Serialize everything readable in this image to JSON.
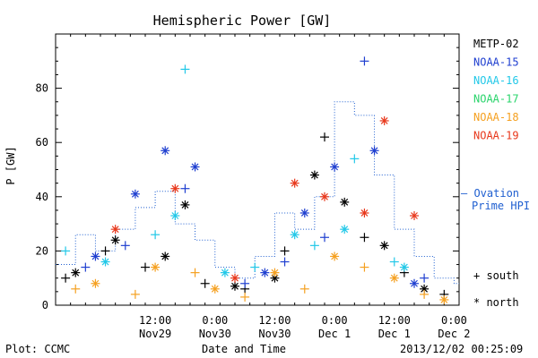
{
  "chart_data": {
    "type": "scatter",
    "title": "Hemispheric Power [GW]",
    "xlabel": "Date and Time",
    "ylabel": "P [GW]",
    "xlim": [
      "2013-11-28T16:00",
      "2013-12-02T01:00"
    ],
    "ylim": [
      0,
      100
    ],
    "y_ticks": [
      0,
      20,
      40,
      60,
      80
    ],
    "x_ticks": [
      {
        "t": "2013-11-29T12:00",
        "line1": "12:00",
        "line2": "Nov29"
      },
      {
        "t": "2013-11-30T00:00",
        "line1": "0:00",
        "line2": "Nov30"
      },
      {
        "t": "2013-11-30T12:00",
        "line1": "12:00",
        "line2": "Nov30"
      },
      {
        "t": "2013-12-01T00:00",
        "line1": "0:00",
        "line2": "Dec 1"
      },
      {
        "t": "2013-12-01T12:00",
        "line1": "12:00",
        "line2": "Dec 1"
      },
      {
        "t": "2013-12-02T00:00",
        "line1": "0:00",
        "line2": "Dec 2"
      }
    ],
    "legend": {
      "placement": "right",
      "entries": [
        {
          "name": "METP-02",
          "color": "#000000"
        },
        {
          "name": "NOAA-15",
          "color": "#1f3fd0"
        },
        {
          "name": "NOAA-16",
          "color": "#22c8e8"
        },
        {
          "name": "NOAA-17",
          "color": "#29d46b"
        },
        {
          "name": "NOAA-18",
          "color": "#f5a020"
        },
        {
          "name": "NOAA-19",
          "color": "#e8381c"
        }
      ]
    },
    "ovation": {
      "label_line1": "– Ovation",
      "label_line2": "Prime HPI",
      "color": "#1f5fd0",
      "x": [
        "2013-11-28T16:00",
        "2013-11-28T20:00",
        "2013-11-29T00:00",
        "2013-11-29T04:00",
        "2013-11-29T08:00",
        "2013-11-29T12:00",
        "2013-11-29T16:00",
        "2013-11-29T20:00",
        "2013-11-30T00:00",
        "2013-11-30T04:00",
        "2013-11-30T08:00",
        "2013-11-30T12:00",
        "2013-11-30T16:00",
        "2013-11-30T20:00",
        "2013-12-01T00:00",
        "2013-12-01T04:00",
        "2013-12-01T08:00",
        "2013-12-01T12:00",
        "2013-12-01T16:00",
        "2013-12-01T20:00",
        "2013-12-02T00:00"
      ],
      "values": [
        15,
        26,
        20,
        28,
        36,
        42,
        30,
        24,
        14,
        10,
        18,
        34,
        28,
        40,
        75,
        70,
        48,
        28,
        18,
        10,
        8
      ]
    },
    "marker_legend": [
      {
        "symbol": "+",
        "label": "south"
      },
      {
        "symbol": "*",
        "label": "north"
      }
    ],
    "series": [
      {
        "name": "METP-02",
        "color": "#000000",
        "marker": "+",
        "x": [
          "2013-11-28T18:00",
          "2013-11-29T02:00",
          "2013-11-29T10:00",
          "2013-11-29T22:00",
          "2013-11-30T06:00",
          "2013-11-30T14:00",
          "2013-11-30T22:00",
          "2013-12-01T06:00",
          "2013-12-01T14:00",
          "2013-12-01T22:00"
        ],
        "y": [
          10,
          20,
          14,
          8,
          6,
          20,
          62,
          25,
          12,
          4
        ]
      },
      {
        "name": "METP-02",
        "color": "#000000",
        "marker": "*",
        "x": [
          "2013-11-28T20:00",
          "2013-11-29T04:00",
          "2013-11-29T14:00",
          "2013-11-29T18:00",
          "2013-11-30T04:00",
          "2013-11-30T12:00",
          "2013-11-30T20:00",
          "2013-12-01T02:00",
          "2013-12-01T10:00",
          "2013-12-01T18:00"
        ],
        "y": [
          12,
          24,
          18,
          37,
          7,
          10,
          48,
          38,
          22,
          6
        ]
      },
      {
        "name": "NOAA-15",
        "color": "#1f3fd0",
        "marker": "+",
        "x": [
          "2013-11-28T22:00",
          "2013-11-29T06:00",
          "2013-11-29T18:00",
          "2013-11-30T06:00",
          "2013-11-30T14:00",
          "2013-11-30T22:00",
          "2013-12-01T06:00",
          "2013-12-01T18:00"
        ],
        "y": [
          14,
          22,
          43,
          8,
          16,
          25,
          90,
          10
        ]
      },
      {
        "name": "NOAA-15",
        "color": "#1f3fd0",
        "marker": "*",
        "x": [
          "2013-11-29T00:00",
          "2013-11-29T08:00",
          "2013-11-29T14:00",
          "2013-11-29T20:00",
          "2013-11-30T10:00",
          "2013-11-30T18:00",
          "2013-12-01T00:00",
          "2013-12-01T08:00",
          "2013-12-01T16:00"
        ],
        "y": [
          18,
          41,
          57,
          51,
          12,
          34,
          51,
          57,
          8
        ]
      },
      {
        "name": "NOAA-16",
        "color": "#22c8e8",
        "marker": "+",
        "x": [
          "2013-11-28T18:00",
          "2013-11-29T12:00",
          "2013-11-29T18:00",
          "2013-11-30T08:00",
          "2013-11-30T20:00",
          "2013-12-01T04:00",
          "2013-12-01T12:00"
        ],
        "y": [
          20,
          26,
          87,
          14,
          22,
          54,
          16
        ]
      },
      {
        "name": "NOAA-16",
        "color": "#22c8e8",
        "marker": "*",
        "x": [
          "2013-11-29T02:00",
          "2013-11-29T16:00",
          "2013-11-30T02:00",
          "2013-11-30T16:00",
          "2013-12-01T02:00",
          "2013-12-01T14:00"
        ],
        "y": [
          16,
          33,
          12,
          26,
          28,
          14
        ]
      },
      {
        "name": "NOAA-18",
        "color": "#f5a020",
        "marker": "+",
        "x": [
          "2013-11-28T20:00",
          "2013-11-29T08:00",
          "2013-11-29T20:00",
          "2013-11-30T06:00",
          "2013-11-30T18:00",
          "2013-12-01T06:00",
          "2013-12-01T18:00"
        ],
        "y": [
          6,
          4,
          12,
          3,
          6,
          14,
          4
        ]
      },
      {
        "name": "NOAA-18",
        "color": "#f5a020",
        "marker": "*",
        "x": [
          "2013-11-29T00:00",
          "2013-11-29T12:00",
          "2013-11-30T00:00",
          "2013-11-30T12:00",
          "2013-12-01T00:00",
          "2013-12-01T12:00",
          "2013-12-01T22:00"
        ],
        "y": [
          8,
          14,
          6,
          12,
          18,
          10,
          2
        ]
      },
      {
        "name": "NOAA-19",
        "color": "#e8381c",
        "marker": "*",
        "x": [
          "2013-11-29T04:00",
          "2013-11-29T16:00",
          "2013-11-30T04:00",
          "2013-11-30T16:00",
          "2013-11-30T22:00",
          "2013-12-01T06:00",
          "2013-12-01T10:00",
          "2013-12-01T16:00"
        ],
        "y": [
          28,
          43,
          10,
          45,
          40,
          34,
          68,
          33
        ]
      }
    ]
  },
  "footer": {
    "plot_label": "Plot: CCMC",
    "timestamp": "2013/12/02 00:25:09"
  }
}
